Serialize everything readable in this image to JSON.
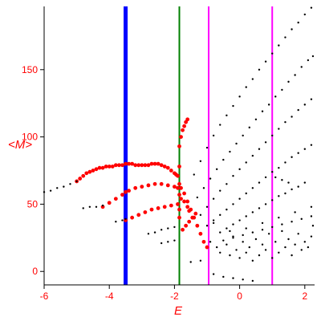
{
  "chart_data": {
    "type": "scatter",
    "title": "",
    "xlabel": "E",
    "ylabel": "<M>",
    "xlim": [
      -6.0,
      2.3
    ],
    "ylim": [
      -10,
      197
    ],
    "grid": false,
    "xticks": [
      {
        "value": -6,
        "label": "-6"
      },
      {
        "value": -4,
        "label": "-4"
      },
      {
        "value": -2,
        "label": "-2"
      },
      {
        "value": 0,
        "label": "0"
      },
      {
        "value": 2,
        "label": "2"
      }
    ],
    "yticks": [
      {
        "value": 0,
        "label": "0"
      },
      {
        "value": 50,
        "label": "50"
      },
      {
        "value": 100,
        "label": "100"
      },
      {
        "value": 150,
        "label": "150"
      }
    ],
    "vertical_lines": [
      {
        "x": -3.5,
        "color": "#0000ff"
      },
      {
        "x": -1.85,
        "color": "#008000"
      },
      {
        "x": -0.95,
        "color": "#ff00ff"
      },
      {
        "x": 1.0,
        "color": "#ff00ff"
      }
    ],
    "series": [
      {
        "color": "#ff0000",
        "points": [
          [
            -5.0,
            67
          ],
          [
            -4.9,
            69
          ],
          [
            -4.8,
            71
          ],
          [
            -4.7,
            73
          ],
          [
            -4.6,
            74
          ],
          [
            -4.5,
            75
          ],
          [
            -4.4,
            76
          ],
          [
            -4.3,
            77
          ],
          [
            -4.2,
            77
          ],
          [
            -4.1,
            78
          ],
          [
            -4.0,
            78
          ],
          [
            -3.9,
            78
          ],
          [
            -3.8,
            79
          ],
          [
            -3.7,
            79
          ],
          [
            -3.6,
            79
          ],
          [
            -3.5,
            80
          ],
          [
            -3.4,
            80
          ],
          [
            -3.3,
            80
          ],
          [
            -3.2,
            79
          ],
          [
            -3.1,
            79
          ],
          [
            -3.0,
            79
          ],
          [
            -2.9,
            79
          ],
          [
            -2.8,
            79
          ],
          [
            -2.7,
            80
          ],
          [
            -2.6,
            80
          ],
          [
            -2.5,
            80
          ],
          [
            -2.4,
            79
          ],
          [
            -2.3,
            78
          ],
          [
            -2.2,
            77
          ],
          [
            -2.1,
            75
          ],
          [
            -2.0,
            73
          ],
          [
            -1.95,
            72
          ],
          [
            -1.9,
            71
          ],
          [
            -4.2,
            48
          ],
          [
            -4.0,
            51
          ],
          [
            -3.8,
            54
          ],
          [
            -3.6,
            57
          ],
          [
            -3.5,
            59
          ],
          [
            -3.4,
            60
          ],
          [
            -3.2,
            62
          ],
          [
            -3.0,
            63
          ],
          [
            -2.8,
            64
          ],
          [
            -2.6,
            65
          ],
          [
            -2.4,
            65
          ],
          [
            -2.2,
            64
          ],
          [
            -2.0,
            63
          ],
          [
            -1.9,
            62
          ],
          [
            -3.5,
            38
          ],
          [
            -3.3,
            40
          ],
          [
            -3.1,
            42
          ],
          [
            -2.9,
            44
          ],
          [
            -2.7,
            46
          ],
          [
            -2.5,
            47
          ],
          [
            -2.3,
            48
          ],
          [
            -2.1,
            49
          ],
          [
            -1.9,
            50
          ],
          [
            -1.85,
            93
          ],
          [
            -1.85,
            78
          ],
          [
            -1.85,
            65
          ],
          [
            -1.85,
            57
          ],
          [
            -1.85,
            46
          ],
          [
            -1.85,
            40
          ],
          [
            -1.8,
            100
          ],
          [
            -1.75,
            105
          ],
          [
            -1.7,
            108
          ],
          [
            -1.65,
            111
          ],
          [
            -1.6,
            113
          ],
          [
            -1.8,
            62
          ],
          [
            -1.7,
            58
          ],
          [
            -1.6,
            52
          ],
          [
            -1.5,
            46
          ],
          [
            -1.4,
            40
          ],
          [
            -1.3,
            34
          ],
          [
            -1.2,
            28
          ],
          [
            -1.1,
            22
          ],
          [
            -1.0,
            18
          ],
          [
            -1.8,
            54
          ],
          [
            -1.7,
            52
          ],
          [
            -1.6,
            48
          ],
          [
            -1.55,
            45
          ],
          [
            -1.75,
            31
          ],
          [
            -1.65,
            34
          ],
          [
            -1.55,
            37
          ],
          [
            -1.45,
            40
          ],
          [
            -1.35,
            43
          ]
        ]
      },
      {
        "color": "#000000",
        "points": [
          [
            -6.0,
            59
          ],
          [
            -5.8,
            60
          ],
          [
            -5.6,
            62
          ],
          [
            -5.4,
            63
          ],
          [
            -5.2,
            65
          ],
          [
            -5.0,
            67
          ],
          [
            -4.8,
            47
          ],
          [
            -4.6,
            48
          ],
          [
            -4.4,
            48
          ],
          [
            -4.2,
            49
          ],
          [
            -3.8,
            37
          ],
          [
            -3.6,
            38
          ],
          [
            -3.5,
            39
          ],
          [
            -2.8,
            28
          ],
          [
            -2.6,
            29
          ],
          [
            -2.4,
            31
          ],
          [
            -2.2,
            32
          ],
          [
            -2.0,
            33
          ],
          [
            -2.4,
            21
          ],
          [
            -2.2,
            22
          ],
          [
            -2.0,
            23
          ],
          [
            -1.5,
            7
          ],
          [
            -1.2,
            8
          ],
          [
            -0.8,
            -2
          ],
          [
            -0.5,
            -4
          ],
          [
            -0.2,
            -5
          ],
          [
            0.1,
            -6
          ],
          [
            0.4,
            -7
          ],
          [
            -1.4,
            72
          ],
          [
            -1.2,
            82
          ],
          [
            -1.0,
            92
          ],
          [
            -0.8,
            101
          ],
          [
            -0.6,
            109
          ],
          [
            -0.4,
            116
          ],
          [
            -0.2,
            123
          ],
          [
            0.0,
            130
          ],
          [
            0.2,
            137
          ],
          [
            0.4,
            143
          ],
          [
            0.6,
            150
          ],
          [
            0.8,
            156
          ],
          [
            1.0,
            162
          ],
          [
            1.2,
            168
          ],
          [
            1.4,
            174
          ],
          [
            1.6,
            180
          ],
          [
            1.8,
            185
          ],
          [
            2.0,
            191
          ],
          [
            2.2,
            196
          ],
          [
            -1.3,
            55
          ],
          [
            -1.1,
            62
          ],
          [
            -0.9,
            69
          ],
          [
            -0.7,
            76
          ],
          [
            -0.5,
            83
          ],
          [
            -0.3,
            89
          ],
          [
            -0.1,
            95
          ],
          [
            0.1,
            101
          ],
          [
            0.3,
            107
          ],
          [
            0.5,
            113
          ],
          [
            0.7,
            119
          ],
          [
            0.9,
            124
          ],
          [
            1.1,
            130
          ],
          [
            1.3,
            135
          ],
          [
            1.5,
            141
          ],
          [
            1.7,
            146
          ],
          [
            1.9,
            152
          ],
          [
            2.1,
            157
          ],
          [
            2.25,
            160
          ],
          [
            -1.2,
            42
          ],
          [
            -1.0,
            48
          ],
          [
            -0.8,
            54
          ],
          [
            -0.6,
            60
          ],
          [
            -0.4,
            65
          ],
          [
            -0.2,
            71
          ],
          [
            0.0,
            76
          ],
          [
            0.2,
            81
          ],
          [
            0.4,
            86
          ],
          [
            0.6,
            91
          ],
          [
            0.8,
            96
          ],
          [
            1.0,
            101
          ],
          [
            1.2,
            106
          ],
          [
            1.4,
            111
          ],
          [
            1.6,
            115
          ],
          [
            1.8,
            120
          ],
          [
            2.0,
            124
          ],
          [
            2.2,
            128
          ],
          [
            -1.0,
            34
          ],
          [
            -0.8,
            38
          ],
          [
            -0.6,
            42
          ],
          [
            -0.4,
            46
          ],
          [
            -0.2,
            50
          ],
          [
            0.0,
            54
          ],
          [
            0.2,
            58
          ],
          [
            0.4,
            62
          ],
          [
            0.6,
            66
          ],
          [
            0.8,
            70
          ],
          [
            1.0,
            74
          ],
          [
            1.2,
            77
          ],
          [
            1.4,
            81
          ],
          [
            1.6,
            85
          ],
          [
            1.8,
            88
          ],
          [
            2.0,
            91
          ],
          [
            2.2,
            94
          ],
          [
            -0.6,
            29
          ],
          [
            -0.4,
            32
          ],
          [
            -0.2,
            35
          ],
          [
            0.0,
            38
          ],
          [
            0.2,
            41
          ],
          [
            0.4,
            44
          ],
          [
            0.6,
            47
          ],
          [
            0.8,
            50
          ],
          [
            1.0,
            53
          ],
          [
            1.2,
            56
          ],
          [
            1.4,
            58
          ],
          [
            1.6,
            61
          ],
          [
            1.8,
            63
          ],
          [
            2.0,
            66
          ],
          [
            -0.5,
            23
          ],
          [
            -0.2,
            25
          ],
          [
            0.1,
            27
          ],
          [
            0.4,
            29
          ],
          [
            0.7,
            31
          ],
          [
            1.0,
            33
          ],
          [
            1.3,
            35
          ],
          [
            1.6,
            37
          ],
          [
            1.9,
            39
          ],
          [
            2.2,
            41
          ],
          [
            -0.9,
            22
          ],
          [
            -0.7,
            18
          ],
          [
            -0.6,
            14
          ],
          [
            -0.4,
            20
          ],
          [
            -0.3,
            12
          ],
          [
            -0.2,
            26
          ],
          [
            -0.1,
            16
          ],
          [
            0.0,
            10
          ],
          [
            0.1,
            22
          ],
          [
            0.2,
            14
          ],
          [
            0.3,
            18
          ],
          [
            0.4,
            8
          ],
          [
            0.5,
            24
          ],
          [
            0.6,
            12
          ],
          [
            0.7,
            20
          ],
          [
            0.8,
            16
          ],
          [
            0.9,
            28
          ],
          [
            1.0,
            10
          ],
          [
            1.1,
            22
          ],
          [
            1.2,
            14
          ],
          [
            1.3,
            30
          ],
          [
            1.4,
            18
          ],
          [
            1.5,
            24
          ],
          [
            1.6,
            12
          ],
          [
            1.7,
            20
          ],
          [
            1.8,
            28
          ],
          [
            1.9,
            16
          ],
          [
            2.0,
            22
          ],
          [
            2.1,
            18
          ],
          [
            2.2,
            26
          ],
          [
            2.25,
            34
          ],
          [
            -0.8,
            36
          ],
          [
            -0.3,
            30
          ],
          [
            0.2,
            32
          ],
          [
            0.7,
            36
          ],
          [
            1.2,
            40
          ],
          [
            1.7,
            44
          ],
          [
            2.2,
            48
          ],
          [
            1.1,
            70
          ],
          [
            1.3,
            68
          ],
          [
            1.5,
            66
          ]
        ]
      }
    ]
  }
}
